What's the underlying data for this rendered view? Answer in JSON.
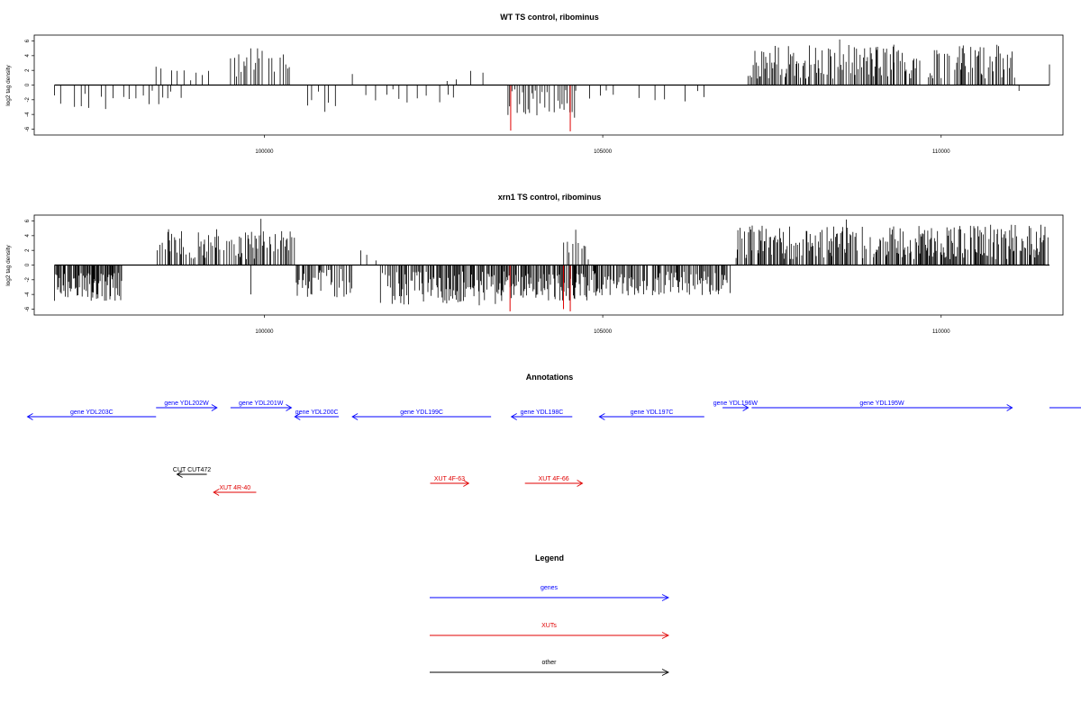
{
  "chart_data": [
    {
      "type": "bar",
      "title": "WT TS control, ribominus",
      "ylabel": "log2 tag density",
      "xlabel": "",
      "xlim": [
        96600,
        111800
      ],
      "ylim": [
        -6.8,
        6.8
      ],
      "yticks": [
        6,
        4,
        2,
        0,
        -2,
        -4,
        -6
      ],
      "xticks": [
        100000,
        105000,
        110000
      ],
      "grid": false,
      "zero_line": [
        96900,
        111600
      ],
      "highlight_color": "#e00000",
      "bar_color": "#000000",
      "density_regions": [
        {
          "from": 96900,
          "to": 98800,
          "min": -3.5,
          "max": -0.5,
          "step": 80
        },
        {
          "from": 98400,
          "to": 99200,
          "min": 0.6,
          "max": 3.3,
          "step": 70
        },
        {
          "from": 99500,
          "to": 100400,
          "min": 0.8,
          "max": 5,
          "step": 45
        },
        {
          "from": 100550,
          "to": 101100,
          "min": -3.7,
          "max": -0.6,
          "step": 70
        },
        {
          "from": 101500,
          "to": 102800,
          "min": -3.5,
          "max": -0.5,
          "step": 140
        },
        {
          "from": 102700,
          "to": 103300,
          "min": 0.5,
          "max": 2,
          "step": 150
        },
        {
          "from": 103600,
          "to": 104600,
          "min": -4.5,
          "max": -0.5,
          "step": 30
        },
        {
          "from": 104600,
          "to": 106700,
          "min": -2.5,
          "max": -0.5,
          "step": 160
        },
        {
          "from": 107150,
          "to": 111100,
          "min": 0.8,
          "max": 5.5,
          "step": 20
        }
      ],
      "spikes": [
        {
          "x": 98400,
          "y": 2.5
        },
        {
          "x": 99700,
          "y": 3.2
        },
        {
          "x": 99900,
          "y": 5
        },
        {
          "x": 101300,
          "y": 1.5
        },
        {
          "x": 108500,
          "y": 6.2
        },
        {
          "x": 109300,
          "y": 5.5
        },
        {
          "x": 111600,
          "y": 2.8
        },
        {
          "x": 111150,
          "y": -0.8
        }
      ],
      "highlights": [
        {
          "x": 103640,
          "y": -6.2
        },
        {
          "x": 104520,
          "y": -6.3
        }
      ]
    },
    {
      "type": "bar",
      "title": "xrn1 TS control, ribominus",
      "ylabel": "log2 tag density",
      "xlabel": "",
      "xlim": [
        96600,
        111800
      ],
      "ylim": [
        -6.8,
        6.8
      ],
      "yticks": [
        6,
        4,
        2,
        0,
        -2,
        -4,
        -6
      ],
      "xticks": [
        100000,
        105000,
        110000
      ],
      "grid": false,
      "zero_line": [
        96900,
        111600
      ],
      "highlight_color": "#e00000",
      "bar_color": "#000000",
      "density_regions": [
        {
          "from": 96900,
          "to": 97900,
          "min": -5,
          "max": -1,
          "step": 12
        },
        {
          "from": 98400,
          "to": 100450,
          "min": 0.8,
          "max": 5,
          "step": 18
        },
        {
          "from": 100450,
          "to": 101300,
          "min": -4.5,
          "max": -0.5,
          "step": 18
        },
        {
          "from": 101300,
          "to": 101700,
          "min": 0.5,
          "max": 2.5,
          "step": 60
        },
        {
          "from": 101700,
          "to": 103600,
          "min": -5.5,
          "max": -0.8,
          "step": 14
        },
        {
          "from": 103600,
          "to": 104800,
          "min": -5,
          "max": -1,
          "step": 12
        },
        {
          "from": 104400,
          "to": 104800,
          "min": 0.5,
          "max": 4,
          "step": 40
        },
        {
          "from": 104800,
          "to": 106900,
          "min": -4.2,
          "max": -0.8,
          "step": 16
        },
        {
          "from": 106950,
          "to": 111600,
          "min": 0.8,
          "max": 5.5,
          "step": 14
        }
      ],
      "spikes": [
        {
          "x": 99950,
          "y": 6.3
        },
        {
          "x": 99800,
          "y": -4
        },
        {
          "x": 104600,
          "y": 4.8
        },
        {
          "x": 108600,
          "y": 6.2
        },
        {
          "x": 111400,
          "y": 2
        }
      ],
      "highlights": [
        {
          "x": 103630,
          "y": -6.3
        },
        {
          "x": 104420,
          "y": -6
        },
        {
          "x": 104520,
          "y": -6.3
        }
      ]
    }
  ],
  "annotations": {
    "title": "Annotations",
    "features": [
      {
        "label": "gene YDL203C",
        "start": 96500,
        "end": 98400,
        "row": 1,
        "dir": "left",
        "color": "#0000ff"
      },
      {
        "label": "gene YDL202W",
        "start": 98400,
        "end": 99300,
        "row": 0,
        "dir": "right",
        "color": "#0000ff"
      },
      {
        "label": "gene YDL201W",
        "start": 99500,
        "end": 100400,
        "row": 0,
        "dir": "right",
        "color": "#0000ff"
      },
      {
        "label": "gene YDL200C",
        "start": 100450,
        "end": 101100,
        "row": 1,
        "dir": "left",
        "color": "#0000ff"
      },
      {
        "label": "gene YDL199C",
        "start": 101300,
        "end": 103350,
        "row": 1,
        "dir": "left",
        "color": "#0000ff"
      },
      {
        "label": "gene YDL198C",
        "start": 103650,
        "end": 104550,
        "row": 1,
        "dir": "left",
        "color": "#0000ff"
      },
      {
        "label": "gene YDL197C",
        "start": 104950,
        "end": 106500,
        "row": 1,
        "dir": "left",
        "color": "#0000ff"
      },
      {
        "label": "gene YDL196W",
        "start": 106770,
        "end": 107150,
        "row": 0,
        "dir": "right",
        "color": "#0000ff"
      },
      {
        "label": "gene YDL195W",
        "start": 107200,
        "end": 111050,
        "row": 0,
        "dir": "right",
        "color": "#0000ff"
      },
      {
        "label": "",
        "start": 111600,
        "end": 112400,
        "row": 0,
        "dir": "none",
        "color": "#0000ff"
      },
      {
        "label": "CUT CUT472",
        "start": 98710,
        "end": 99150,
        "row": 2,
        "dir": "left",
        "color": "#000000"
      },
      {
        "label": "XUT 4R-40",
        "start": 99250,
        "end": 99880,
        "row": 3,
        "dir": "left",
        "color": "#e00000"
      },
      {
        "label": "XUT 4F-63",
        "start": 102450,
        "end": 103020,
        "row": 4,
        "dir": "right",
        "color": "#e00000"
      },
      {
        "label": "XUT 4F-66",
        "start": 103850,
        "end": 104700,
        "row": 4,
        "dir": "right",
        "color": "#e00000"
      }
    ]
  },
  "legend": {
    "title": "Legend",
    "items": [
      {
        "label": "genes",
        "color": "#0000ff"
      },
      {
        "label": "XUTs",
        "color": "#e00000"
      },
      {
        "label": "other",
        "color": "#000000"
      }
    ]
  }
}
